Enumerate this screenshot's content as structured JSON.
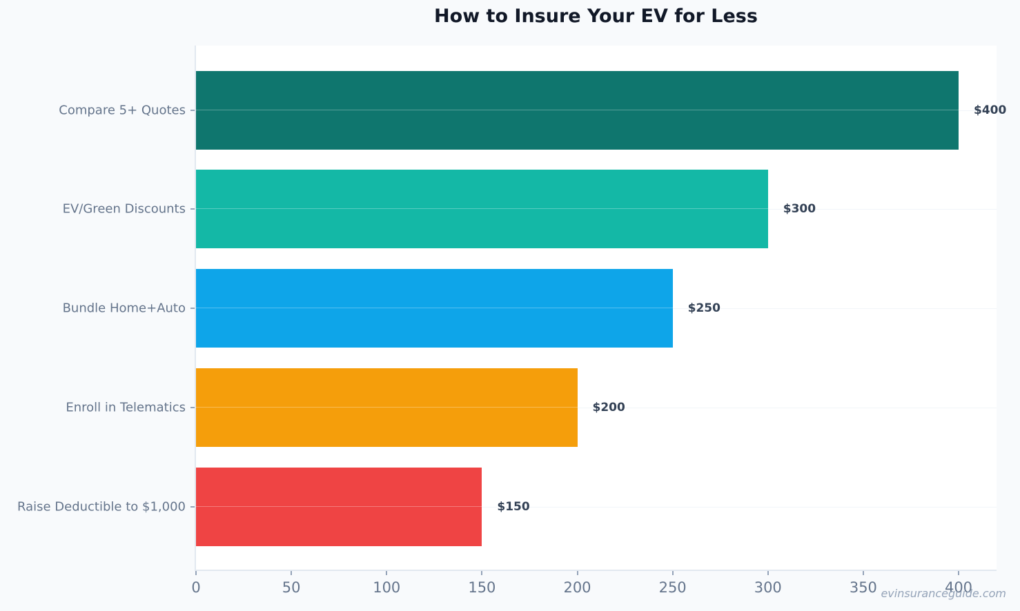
{
  "chart_data": {
    "type": "bar",
    "orientation": "horizontal",
    "title": "How to Insure Your EV for Less",
    "categories": [
      "Compare 5+ Quotes",
      "EV/Green Discounts",
      "Bundle Home+Auto",
      "Enroll in Telematics",
      "Raise Deductible to $1,000"
    ],
    "values": [
      400,
      300,
      250,
      200,
      150
    ],
    "value_labels": [
      "$400",
      "$300",
      "$250",
      "$200",
      "$150"
    ],
    "colors": [
      "#0f766e",
      "#14b8a6",
      "#0ea5e9",
      "#f59e0b",
      "#ef4444"
    ],
    "xlabel": "",
    "ylabel": "",
    "xlim": [
      0,
      420
    ],
    "xticks": [
      "0",
      "50",
      "100",
      "150",
      "200",
      "250",
      "300",
      "350",
      "400"
    ],
    "grid": true,
    "legend": null
  },
  "title": "How to Insure Your EV for Less",
  "bars": [
    {
      "label": "Compare 5+ Quotes",
      "value": 400,
      "value_label": "$400",
      "color": "#0f766e"
    },
    {
      "label": "EV/Green Discounts",
      "value": 300,
      "value_label": "$300",
      "color": "#14b8a6"
    },
    {
      "label": "Bundle Home+Auto",
      "value": 250,
      "value_label": "$250",
      "color": "#0ea5e9"
    },
    {
      "label": "Enroll in Telematics",
      "value": 200,
      "value_label": "$200",
      "color": "#f59e0b"
    },
    {
      "label": "Raise Deductible to $1,000",
      "value": 150,
      "value_label": "$150",
      "color": "#ef4444"
    }
  ],
  "xticks": [
    {
      "label": "0",
      "value": 0
    },
    {
      "label": "50",
      "value": 50
    },
    {
      "label": "100",
      "value": 100
    },
    {
      "label": "150",
      "value": 150
    },
    {
      "label": "200",
      "value": 200
    },
    {
      "label": "250",
      "value": 250
    },
    {
      "label": "300",
      "value": 300
    },
    {
      "label": "350",
      "value": 350
    },
    {
      "label": "400",
      "value": 400
    }
  ],
  "watermark": "evinsuranceguide.com"
}
